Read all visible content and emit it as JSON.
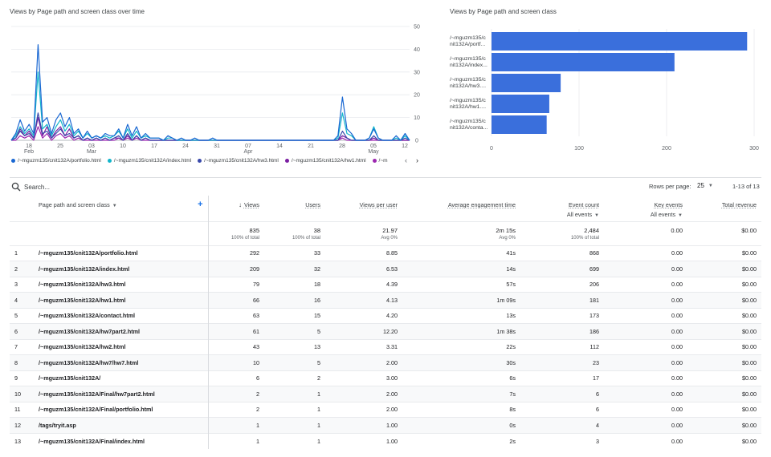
{
  "line_card": {
    "title": "Views by Page path and screen class over time",
    "legend": [
      {
        "label": "/~mguzm135/cnit132A/portfolio.html",
        "color": "#1967d2"
      },
      {
        "label": "/~mguzm135/cnit132A/index.html",
        "color": "#12b5cb"
      },
      {
        "label": "/~mguzm135/cnit132A/hw3.html",
        "color": "#3949ab"
      },
      {
        "label": "/~mguzm135/cnit132A/hw1.html",
        "color": "#7b1fa2"
      },
      {
        "label": "/~m",
        "color": "#9c27b0"
      }
    ],
    "nav_prev": "‹",
    "nav_next": "›"
  },
  "bar_card": {
    "title": "Views by Page path and screen class"
  },
  "chart_data": [
    {
      "type": "line",
      "title": "Views by Page path and screen class over time",
      "x_tick_labels": [
        "18",
        "25",
        "03",
        "10",
        "17",
        "24",
        "31",
        "07",
        "14",
        "21",
        "28",
        "05",
        "12"
      ],
      "x_month_labels": [
        "Feb",
        "Mar",
        "Apr",
        "May"
      ],
      "y_ticks": [
        0,
        10,
        20,
        30,
        40,
        50
      ],
      "ylim": [
        0,
        50
      ],
      "days": 90,
      "series": [
        {
          "name": "/~mguzm135/cnit132A/portfolio.html",
          "color": "#1967d2",
          "values": [
            0,
            3,
            9,
            4,
            7,
            3,
            42,
            8,
            10,
            3,
            9,
            12,
            6,
            10,
            3,
            5,
            1,
            4,
            1,
            2,
            1,
            3,
            2,
            2,
            5,
            1,
            7,
            2,
            6,
            1,
            3,
            1,
            1,
            1,
            0,
            2,
            1,
            0,
            1,
            0,
            0,
            1,
            0,
            0,
            0,
            1,
            0,
            0,
            0,
            0,
            0,
            0,
            0,
            0,
            0,
            0,
            0,
            0,
            0,
            0,
            0,
            0,
            0,
            0,
            0,
            0,
            0,
            0,
            0,
            0,
            0,
            0,
            0,
            2,
            19,
            5,
            3,
            0,
            0,
            0,
            1,
            5,
            1,
            0,
            0,
            0,
            2,
            0,
            3,
            0
          ]
        },
        {
          "name": "/~mguzm135/cnit132A/index.html",
          "color": "#12b5cb",
          "values": [
            0,
            2,
            6,
            3,
            5,
            2,
            30,
            5,
            7,
            2,
            6,
            9,
            4,
            7,
            2,
            4,
            1,
            3,
            1,
            2,
            1,
            2,
            1,
            2,
            4,
            1,
            5,
            1,
            4,
            1,
            2,
            1,
            1,
            1,
            0,
            1,
            1,
            0,
            0,
            0,
            0,
            0,
            0,
            0,
            0,
            0,
            0,
            0,
            0,
            0,
            0,
            0,
            0,
            0,
            0,
            0,
            0,
            0,
            0,
            0,
            0,
            0,
            0,
            0,
            0,
            0,
            0,
            0,
            0,
            0,
            0,
            0,
            0,
            1,
            12,
            3,
            2,
            0,
            0,
            0,
            1,
            6,
            1,
            0,
            0,
            0,
            1,
            0,
            2,
            0
          ]
        },
        {
          "name": "/~mguzm135/cnit132A/hw3.html",
          "color": "#3949ab",
          "values": [
            0,
            1,
            4,
            2,
            3,
            1,
            12,
            3,
            4,
            1,
            3,
            5,
            2,
            3,
            1,
            2,
            0,
            1,
            0,
            1,
            0,
            1,
            0,
            1,
            2,
            0,
            3,
            0,
            2,
            0,
            1,
            0,
            0,
            0,
            0,
            0,
            0,
            0,
            0,
            0,
            0,
            0,
            0,
            0,
            0,
            0,
            0,
            0,
            0,
            0,
            0,
            0,
            0,
            0,
            0,
            0,
            0,
            0,
            0,
            0,
            0,
            0,
            0,
            0,
            0,
            0,
            0,
            0,
            0,
            0,
            0,
            0,
            0,
            0,
            4,
            1,
            0,
            0,
            0,
            0,
            0,
            2,
            0,
            0,
            0,
            0,
            0,
            0,
            1,
            0
          ]
        },
        {
          "name": "/~mguzm135/cnit132A/hw1.html",
          "color": "#7b1fa2",
          "values": [
            0,
            1,
            5,
            2,
            4,
            1,
            10,
            2,
            6,
            1,
            4,
            6,
            2,
            5,
            1,
            2,
            0,
            1,
            0,
            1,
            0,
            1,
            0,
            1,
            1,
            0,
            2,
            0,
            2,
            0,
            1,
            0,
            0,
            0,
            0,
            0,
            0,
            0,
            0,
            0,
            0,
            0,
            0,
            0,
            0,
            0,
            0,
            0,
            0,
            0,
            0,
            0,
            0,
            0,
            0,
            0,
            0,
            0,
            0,
            0,
            0,
            0,
            0,
            0,
            0,
            0,
            0,
            0,
            0,
            0,
            0,
            0,
            0,
            0,
            2,
            1,
            0,
            0,
            0,
            0,
            0,
            1,
            0,
            0,
            0,
            0,
            0,
            0,
            0,
            0
          ]
        },
        {
          "name": "/~m",
          "color": "#9c27b0",
          "values": [
            0,
            0,
            2,
            1,
            2,
            0,
            6,
            1,
            3,
            0,
            2,
            3,
            1,
            2,
            0,
            1,
            0,
            0,
            0,
            0,
            0,
            0,
            0,
            0,
            1,
            0,
            1,
            0,
            1,
            0,
            0,
            0,
            0,
            0,
            0,
            0,
            0,
            0,
            0,
            0,
            0,
            0,
            0,
            0,
            0,
            0,
            0,
            0,
            0,
            0,
            0,
            0,
            0,
            0,
            0,
            0,
            0,
            0,
            0,
            0,
            0,
            0,
            0,
            0,
            0,
            0,
            0,
            0,
            0,
            0,
            0,
            0,
            0,
            0,
            1,
            0,
            0,
            0,
            0,
            0,
            0,
            0,
            0,
            0,
            0,
            0,
            0,
            0,
            0,
            0
          ]
        }
      ]
    },
    {
      "type": "bar",
      "title": "Views by Page path and screen class",
      "orientation": "horizontal",
      "categories": [
        [
          "/~mguzm135/c",
          "nit132A/portf..."
        ],
        [
          "/~mguzm135/c",
          "nit132A/index..."
        ],
        [
          "/~mguzm135/c",
          "nit132A/hw3...."
        ],
        [
          "/~mguzm135/c",
          "nit132A/hw1...."
        ],
        [
          "/~mguzm135/c",
          "nit132A/conta..."
        ]
      ],
      "values": [
        292,
        209,
        79,
        66,
        63
      ],
      "color": "#3a6fdc",
      "x_ticks": [
        0,
        100,
        200,
        300
      ],
      "xlim": [
        0,
        300
      ]
    }
  ],
  "toolbar": {
    "search_placeholder": "Search...",
    "rows_per_page_label": "Rows per page:",
    "rows_per_page_value": "25",
    "range": "1-13 of 13"
  },
  "table": {
    "dimension_header": "Page path and screen class",
    "headers": {
      "views": "Views",
      "users": "Users",
      "views_per_user": "Views per user",
      "avg_engagement": "Average engagement time",
      "event_count": "Event count",
      "event_count_sub": "All events",
      "key_events": "Key events",
      "key_events_sub": "All events",
      "total_revenue": "Total revenue"
    },
    "totals": {
      "views": "835",
      "views_sub": "100% of total",
      "users": "38",
      "users_sub": "100% of total",
      "views_per_user": "21.97",
      "views_per_user_sub": "Avg 0%",
      "avg_engagement": "2m 15s",
      "avg_engagement_sub": "Avg 0%",
      "event_count": "2,484",
      "event_count_sub": "100% of total",
      "key_events": "0.00",
      "total_revenue": "$0.00"
    },
    "rows": [
      {
        "idx": "1",
        "path": "/~mguzm135/cnit132A/portfolio.html",
        "views": "292",
        "users": "33",
        "vpu": "8.85",
        "aet": "41s",
        "events": "868",
        "key": "0.00",
        "rev": "$0.00"
      },
      {
        "idx": "2",
        "path": "/~mguzm135/cnit132A/index.html",
        "views": "209",
        "users": "32",
        "vpu": "6.53",
        "aet": "14s",
        "events": "699",
        "key": "0.00",
        "rev": "$0.00"
      },
      {
        "idx": "3",
        "path": "/~mguzm135/cnit132A/hw3.html",
        "views": "79",
        "users": "18",
        "vpu": "4.39",
        "aet": "57s",
        "events": "206",
        "key": "0.00",
        "rev": "$0.00"
      },
      {
        "idx": "4",
        "path": "/~mguzm135/cnit132A/hw1.html",
        "views": "66",
        "users": "16",
        "vpu": "4.13",
        "aet": "1m 09s",
        "events": "181",
        "key": "0.00",
        "rev": "$0.00"
      },
      {
        "idx": "5",
        "path": "/~mguzm135/cnit132A/contact.html",
        "views": "63",
        "users": "15",
        "vpu": "4.20",
        "aet": "13s",
        "events": "173",
        "key": "0.00",
        "rev": "$0.00"
      },
      {
        "idx": "6",
        "path": "/~mguzm135/cnit132A/hw7part2.html",
        "views": "61",
        "users": "5",
        "vpu": "12.20",
        "aet": "1m 38s",
        "events": "186",
        "key": "0.00",
        "rev": "$0.00"
      },
      {
        "idx": "7",
        "path": "/~mguzm135/cnit132A/hw2.html",
        "views": "43",
        "users": "13",
        "vpu": "3.31",
        "aet": "22s",
        "events": "112",
        "key": "0.00",
        "rev": "$0.00"
      },
      {
        "idx": "8",
        "path": "/~mguzm135/cnit132A/hw7/hw7.html",
        "views": "10",
        "users": "5",
        "vpu": "2.00",
        "aet": "30s",
        "events": "23",
        "key": "0.00",
        "rev": "$0.00"
      },
      {
        "idx": "9",
        "path": "/~mguzm135/cnit132A/",
        "views": "6",
        "users": "2",
        "vpu": "3.00",
        "aet": "6s",
        "events": "17",
        "key": "0.00",
        "rev": "$0.00"
      },
      {
        "idx": "10",
        "path": "/~mguzm135/cnit132A/Final/hw7part2.html",
        "views": "2",
        "users": "1",
        "vpu": "2.00",
        "aet": "7s",
        "events": "6",
        "key": "0.00",
        "rev": "$0.00"
      },
      {
        "idx": "11",
        "path": "/~mguzm135/cnit132A/Final/portfolio.html",
        "views": "2",
        "users": "1",
        "vpu": "2.00",
        "aet": "8s",
        "events": "6",
        "key": "0.00",
        "rev": "$0.00"
      },
      {
        "idx": "12",
        "path": "/tags/tryit.asp",
        "views": "1",
        "users": "1",
        "vpu": "1.00",
        "aet": "0s",
        "events": "4",
        "key": "0.00",
        "rev": "$0.00"
      },
      {
        "idx": "13",
        "path": "/~mguzm135/cnit132A/Final/index.html",
        "views": "1",
        "users": "1",
        "vpu": "1.00",
        "aet": "2s",
        "events": "3",
        "key": "0.00",
        "rev": "$0.00"
      }
    ]
  }
}
